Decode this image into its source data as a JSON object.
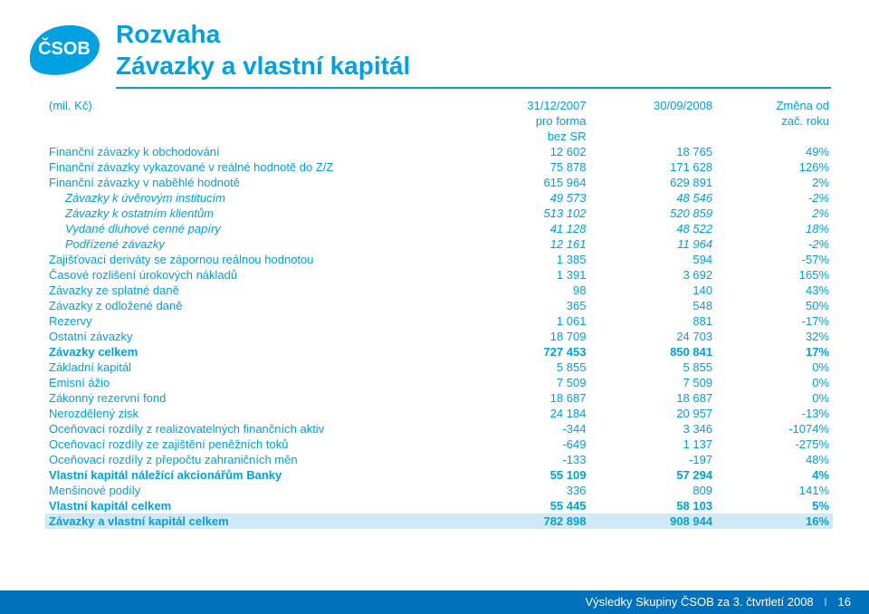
{
  "brand": {
    "name": "ČSOB",
    "logo_text": "ČSOB",
    "logo_bg": "#00a1e0",
    "logo_fg": "#ffffff"
  },
  "title_line1": "Rozvaha",
  "title_line2": "Závazky a vlastní kapitál",
  "colors": {
    "accent": "#00a1e0",
    "footer_bg": "#0071bc",
    "total_row_bg": "#cfe9f7",
    "text": "#00a1e0"
  },
  "header": {
    "col0": "(mil. Kč)",
    "col1": "31/12/2007",
    "col1_sub1": "pro forma",
    "col1_sub2": "bez SR",
    "col2": "30/09/2008",
    "col3_line1": "Změna od",
    "col3_line2": "zač. roku"
  },
  "rows": [
    {
      "label": "Finanční závazky k obchodování",
      "a": "12 602",
      "b": "18 765",
      "c": "49%",
      "indent": 0,
      "bold": false
    },
    {
      "label": "Finanční závazky vykazované v reálné hodnotě do Z/Z",
      "a": "75 878",
      "b": "171 628",
      "c": "126%",
      "indent": 0,
      "bold": false
    },
    {
      "label": "Finanční závazky v naběhlé hodnotě",
      "a": "615 964",
      "b": "629 891",
      "c": "2%",
      "indent": 0,
      "bold": false
    },
    {
      "label": "Závazky k úvěrovým institucím",
      "a": "49 573",
      "b": "48 546",
      "c": "-2%",
      "indent": 1,
      "bold": false,
      "italic": true
    },
    {
      "label": "Závazky k ostatním klientům",
      "a": "513 102",
      "b": "520 859",
      "c": "2%",
      "indent": 1,
      "bold": false,
      "italic": true
    },
    {
      "label": "Vydané dluhové cenné papíry",
      "a": "41 128",
      "b": "48 522",
      "c": "18%",
      "indent": 1,
      "bold": false,
      "italic": true
    },
    {
      "label": "Podřízené závazky",
      "a": "12 161",
      "b": "11 964",
      "c": "-2%",
      "indent": 1,
      "bold": false,
      "italic": true
    },
    {
      "label": "Zajišťovací deriváty se zápornou reálnou hodnotou",
      "a": "1 385",
      "b": "594",
      "c": "-57%",
      "indent": 0,
      "bold": false
    },
    {
      "label": "Časové rozlišení úrokových nákladů",
      "a": "1 391",
      "b": "3 692",
      "c": "165%",
      "indent": 0,
      "bold": false
    },
    {
      "label": "Závazky ze splatné daně",
      "a": "98",
      "b": "140",
      "c": "43%",
      "indent": 0,
      "bold": false
    },
    {
      "label": "Závazky z odložené daně",
      "a": "365",
      "b": "548",
      "c": "50%",
      "indent": 0,
      "bold": false
    },
    {
      "label": "Rezervy",
      "a": "1 061",
      "b": "881",
      "c": "-17%",
      "indent": 0,
      "bold": false
    },
    {
      "label": "Ostatní závazky",
      "a": "18 709",
      "b": "24 703",
      "c": "32%",
      "indent": 0,
      "bold": false
    },
    {
      "label": "Závazky celkem",
      "a": "727 453",
      "b": "850 841",
      "c": "17%",
      "indent": 0,
      "bold": true
    },
    {
      "label": "Základní kapitál",
      "a": "5 855",
      "b": "5 855",
      "c": "0%",
      "indent": 0,
      "bold": false
    },
    {
      "label": "Emisní ážio",
      "a": "7 509",
      "b": "7 509",
      "c": "0%",
      "indent": 0,
      "bold": false
    },
    {
      "label": "Zákonný rezervní fond",
      "a": "18 687",
      "b": "18 687",
      "c": "0%",
      "indent": 0,
      "bold": false
    },
    {
      "label": "Nerozdělený zisk",
      "a": "24 184",
      "b": "20 957",
      "c": "-13%",
      "indent": 0,
      "bold": false
    },
    {
      "label": "Oceňovací rozdíly z realizovatelných finančních aktiv",
      "a": "-344",
      "b": "3 346",
      "c": "-1074%",
      "indent": 0,
      "bold": false
    },
    {
      "label": "Oceňovací rozdíly ze zajištění peněžních toků",
      "a": "-649",
      "b": "1 137",
      "c": "-275%",
      "indent": 0,
      "bold": false
    },
    {
      "label": "Oceňovací rozdíly z přepočtu zahraničních měn",
      "a": "-133",
      "b": "-197",
      "c": "48%",
      "indent": 0,
      "bold": false
    },
    {
      "label": "Vlastní kapitál náležící akcionářům Banky",
      "a": "55 109",
      "b": "57 294",
      "c": "4%",
      "indent": 0,
      "bold": true
    },
    {
      "label": "Menšinové podíly",
      "a": "336",
      "b": "809",
      "c": "141%",
      "indent": 0,
      "bold": false
    },
    {
      "label": "Vlastní kapitál celkem",
      "a": "55 445",
      "b": "58 103",
      "c": "5%",
      "indent": 0,
      "bold": true
    },
    {
      "label": "Závazky a vlastní kapitál celkem",
      "a": "782 898",
      "b": "908 944",
      "c": "16%",
      "indent": 0,
      "bold": true,
      "total": true
    }
  ],
  "footer": {
    "text": "Výsledky Skupiny ČSOB za 3. čtvrtletí 2008",
    "page": "16"
  }
}
